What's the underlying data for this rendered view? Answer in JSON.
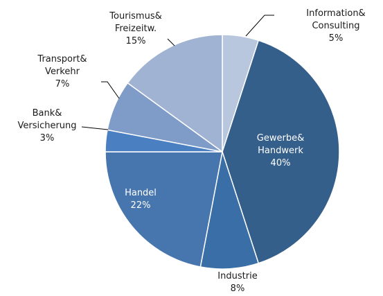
{
  "chart_data": {
    "type": "pie",
    "categories": [
      "Information&\nConsulting",
      "Gewerbe&\nHandwerk",
      "Industrie",
      "Handel",
      "Bank&\nVersicherung",
      "Transport&\nVerkehr",
      "Tourismus&\nFreizeitw."
    ],
    "values": [
      5,
      40,
      8,
      22,
      3,
      7,
      15
    ],
    "value_labels": [
      "5%",
      "40%",
      "8%",
      "22%",
      "3%",
      "7%",
      "15%"
    ],
    "colors": [
      "#b9c7de",
      "#355f8b",
      "#3a6ea6",
      "#4775ae",
      "#4a7fc2",
      "#7f9cc9",
      "#a1b3d3"
    ]
  }
}
